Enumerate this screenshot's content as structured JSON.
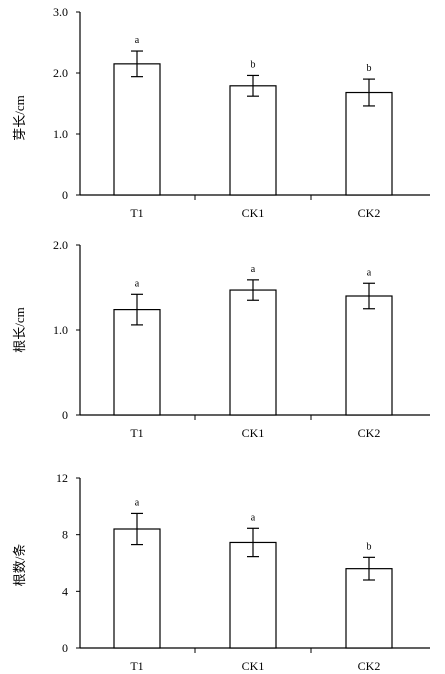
{
  "chart_data": [
    {
      "type": "bar",
      "categories": [
        "T1",
        "CK1",
        "CK2"
      ],
      "values": [
        2.15,
        1.79,
        1.68
      ],
      "errors": [
        0.21,
        0.17,
        0.22
      ],
      "significance": [
        "a",
        "b",
        "b"
      ],
      "ylabel": "芽长/cm",
      "ylim": [
        0,
        3.0
      ],
      "yticks": [
        "0",
        "1.0",
        "2.0",
        "3.0"
      ],
      "ytick_values": [
        0,
        1,
        2,
        3
      ],
      "grid": false
    },
    {
      "type": "bar",
      "categories": [
        "T1",
        "CK1",
        "CK2"
      ],
      "values": [
        1.24,
        1.47,
        1.4
      ],
      "errors": [
        0.18,
        0.12,
        0.15
      ],
      "significance": [
        "a",
        "a",
        "a"
      ],
      "ylabel": "根长/cm",
      "ylim": [
        0,
        2.0
      ],
      "yticks": [
        "0",
        "1.0",
        "2.0"
      ],
      "ytick_values": [
        0,
        1,
        2
      ],
      "grid": false
    },
    {
      "type": "bar",
      "categories": [
        "T1",
        "CK1",
        "CK2"
      ],
      "values": [
        8.4,
        7.45,
        5.6
      ],
      "errors": [
        1.1,
        1.0,
        0.8
      ],
      "significance": [
        "a",
        "a",
        "b"
      ],
      "ylabel": "根数/条",
      "ylim": [
        0,
        12
      ],
      "yticks": [
        "0",
        "4",
        "8",
        "12"
      ],
      "ytick_values": [
        0,
        4,
        8,
        12
      ],
      "grid": false
    }
  ]
}
